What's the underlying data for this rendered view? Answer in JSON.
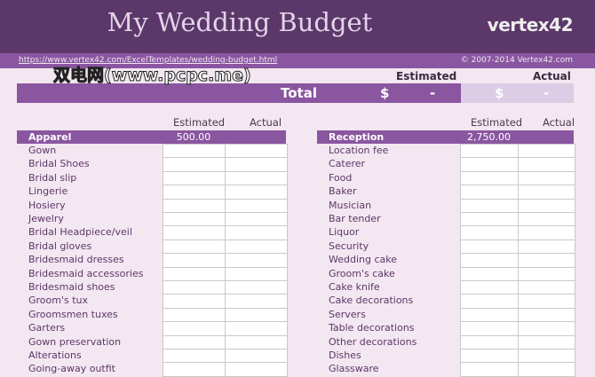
{
  "header": {
    "title": "My Wedding Budget",
    "logo": "vertex42",
    "url": "https://www.vertex42.com/ExcelTemplates/wedding-budget.html",
    "copyright": "© 2007-2014 Vertex42.com"
  },
  "summary": {
    "estimated_label": "Estimated",
    "actual_label": "Actual",
    "total_label": "Total",
    "currency": "$",
    "estimated_value": "-",
    "actual_value": "-"
  },
  "sections": [
    {
      "name": "Apparel",
      "estimated_header": "Estimated",
      "actual_header": "Actual",
      "estimated_total": "500.00",
      "items": [
        "Gown",
        "Bridal Shoes",
        "Bridal slip",
        "Lingerie",
        "Hosiery",
        "Jewelry",
        "Bridal Headpiece/veil",
        "Bridal gloves",
        "Bridesmaid dresses",
        "Bridesmaid accessories",
        "Bridesmaid shoes",
        "Groom's tux",
        "Groomsmen tuxes",
        "Garters",
        "Gown preservation",
        "Alterations",
        "Going-away outfit"
      ]
    },
    {
      "name": "Reception",
      "estimated_header": "Estimated",
      "actual_header": "Actual",
      "estimated_total": "2,750.00",
      "items": [
        "Location fee",
        "Caterer",
        "Food",
        "Baker",
        "Musician",
        "Bar tender",
        "Liquor",
        "Security",
        "Wedding cake",
        "Groom's cake",
        "Cake knife",
        "Cake decorations",
        "Servers",
        "Table decorations",
        "Other decorations",
        "Dishes",
        "Glassware"
      ]
    }
  ],
  "watermark": "双电网(www.pcpc.me)"
}
